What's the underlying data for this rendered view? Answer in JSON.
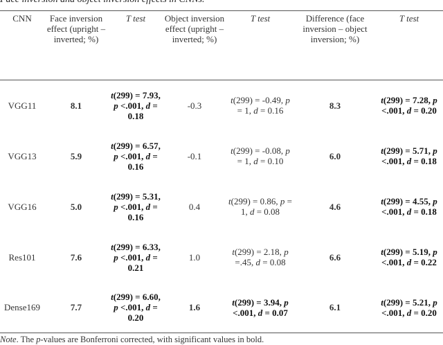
{
  "caption": "Face inversion and object inversion effects in CNNs.",
  "columns": [
    "CNN",
    "Face inversion effect (upright – inverted; %)",
    "T test",
    "Object inversion effect (upright – inverted; %)",
    "T test",
    "Difference (face inversion – object inversion; %)",
    "T test"
  ],
  "rows": [
    {
      "cnn": "VGG11",
      "face": "8.1",
      "t1": {
        "t": "t",
        "a": "(299) = 7.93, ",
        "p": "p",
        "b": " <.001, ",
        "d": "d",
        "c": " = 0.18"
      },
      "obj": "-0.3",
      "t2": {
        "t": "t",
        "a": "(299) = -0.49, ",
        "p": "p",
        "b": " = 1, ",
        "d": "d",
        "c": " = 0.16"
      },
      "diff": "8.3",
      "t3": {
        "t": "t",
        "a": "(299) = 7.28, ",
        "p": "p",
        "b": " <.001, ",
        "d": "d",
        "c": " = 0.20"
      }
    },
    {
      "cnn": "VGG13",
      "face": "5.9",
      "t1": {
        "t": "t",
        "a": "(299) = 6.57, ",
        "p": "p",
        "b": " <.001, ",
        "d": "d",
        "c": " = 0.16"
      },
      "obj": "-0.1",
      "t2": {
        "t": "t",
        "a": "(299) = -0.08, ",
        "p": "p",
        "b": " = 1, ",
        "d": "d",
        "c": " = 0.10"
      },
      "diff": "6.0",
      "t3": {
        "t": "t",
        "a": "(299) = 5.71, ",
        "p": "p",
        "b": " <.001, ",
        "d": "d",
        "c": " = 0.18"
      }
    },
    {
      "cnn": "VGG16",
      "face": "5.0",
      "t1": {
        "t": "t",
        "a": "(299) = 5.31, ",
        "p": "p",
        "b": " <.001, ",
        "d": "d",
        "c": " = 0.16"
      },
      "obj": "0.4",
      "t2": {
        "t": "t",
        "a": "(299) = 0.86, ",
        "p": "p",
        "b": " = 1, ",
        "d": "d",
        "c": " = 0.08"
      },
      "diff": "4.6",
      "t3": {
        "t": "t",
        "a": "(299) = 4.55, ",
        "p": "p",
        "b": " <.001, ",
        "d": "d",
        "c": " = 0.18"
      }
    },
    {
      "cnn": "Res101",
      "face": "7.6",
      "t1": {
        "t": "t",
        "a": "(299) = 6.33, ",
        "p": "p",
        "b": " <.001, ",
        "d": "d",
        "c": " = 0.21"
      },
      "obj": "1.0",
      "t2": {
        "t": "t",
        "a": "(299) = 2.18, ",
        "p": "p",
        "b": " =.45, ",
        "d": "d",
        "c": " = 0.08"
      },
      "diff": "6.6",
      "t3": {
        "t": "t",
        "a": "(299) = 5.19, ",
        "p": "p",
        "b": " <.001, ",
        "d": "d",
        "c": " = 0.22"
      }
    },
    {
      "cnn": "Dense169",
      "face": "7.7",
      "t1": {
        "t": "t",
        "a": "(299) = 6.60, ",
        "p": "p",
        "b": " <.001, ",
        "d": "d",
        "c": " = 0.20"
      },
      "obj": "1.6",
      "t2": {
        "t": "t",
        "a": "(299) = 3.94, ",
        "p": "p",
        "b": " <.001, ",
        "d": "d",
        "c": " = 0.07"
      },
      "diff": "6.1",
      "t3": {
        "t": "t",
        "a": "(299) = 5.21, ",
        "p": "p",
        "b": " <.001, ",
        "d": "d",
        "c": " = 0.20"
      }
    }
  ],
  "note": {
    "label": "Note",
    "pre": ". The ",
    "p": "p",
    "post": "-values are Bonferroni corrected, with significant values in bold."
  }
}
